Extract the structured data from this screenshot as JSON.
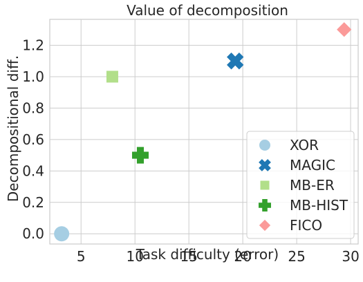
{
  "chart_data": {
    "type": "scatter",
    "title": "Value of decomposition",
    "xlabel": "Task difficulty (error)",
    "ylabel": "Decompositional diff.",
    "xlim": [
      2.1,
      30.7
    ],
    "ylim": [
      -0.065,
      1.365
    ],
    "xticks": [
      5,
      10,
      15,
      20,
      25,
      30
    ],
    "yticks": [
      0.0,
      0.2,
      0.4,
      0.6,
      0.8,
      1.0,
      1.2
    ],
    "ytick_labels": [
      "0.0",
      "0.2",
      "0.4",
      "0.6",
      "0.8",
      "1.0",
      "1.2"
    ],
    "grid": true,
    "legend_position": "lower-right",
    "series": [
      {
        "name": "XOR",
        "marker": "circle",
        "color": "#a6cee3",
        "x": [
          3.2
        ],
        "y": [
          0.0
        ]
      },
      {
        "name": "MAGIC",
        "marker": "x",
        "color": "#1f78b4",
        "x": [
          19.3
        ],
        "y": [
          1.1
        ]
      },
      {
        "name": "MB-ER",
        "marker": "square",
        "color": "#b2df8a",
        "x": [
          7.9
        ],
        "y": [
          1.0
        ]
      },
      {
        "name": "MB-HIST",
        "marker": "plus",
        "color": "#33a02c",
        "x": [
          10.5
        ],
        "y": [
          0.5
        ]
      },
      {
        "name": "FICO",
        "marker": "diamond",
        "color": "#fb9a99",
        "x": [
          29.4
        ],
        "y": [
          1.3
        ]
      }
    ]
  }
}
